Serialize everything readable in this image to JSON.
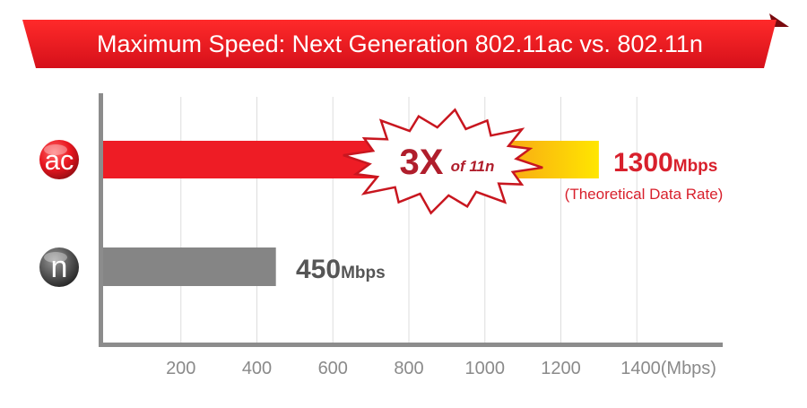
{
  "banner": {
    "title": "Maximum Speed: Next Generation 802.11ac vs. 802.11n"
  },
  "colors": {
    "banner": "#e8161f",
    "ac_bar": "#ee1c25",
    "ac_bar_end": "#ffe600",
    "n_bar": "#858585",
    "axis": "#8c8c8c",
    "grid": "#dddddd"
  },
  "chart_data": {
    "type": "bar",
    "orientation": "horizontal",
    "title": "Maximum Speed: Next Generation 802.11ac vs. 802.11n",
    "categories": [
      "ac",
      "n"
    ],
    "values": [
      1300,
      450
    ],
    "value_labels": [
      {
        "number": "1300",
        "unit": "Mbps",
        "note": "(Theoretical Data Rate)"
      },
      {
        "number": "450",
        "unit": "Mbps"
      }
    ],
    "xticks": [
      "200",
      "400",
      "600",
      "800",
      "1000",
      "1200",
      "1400(Mbps)"
    ],
    "xtick_values": [
      200,
      400,
      600,
      800,
      1000,
      1200,
      1400
    ],
    "xlim": [
      0,
      1600
    ],
    "grid": true,
    "annotation": {
      "big": "3X",
      "small": "of 11n"
    },
    "badges": [
      {
        "label": "ac",
        "icon": "ac-badge-icon",
        "color": "#e8161f"
      },
      {
        "label": "n",
        "icon": "n-badge-icon",
        "color": "#555555"
      }
    ]
  }
}
